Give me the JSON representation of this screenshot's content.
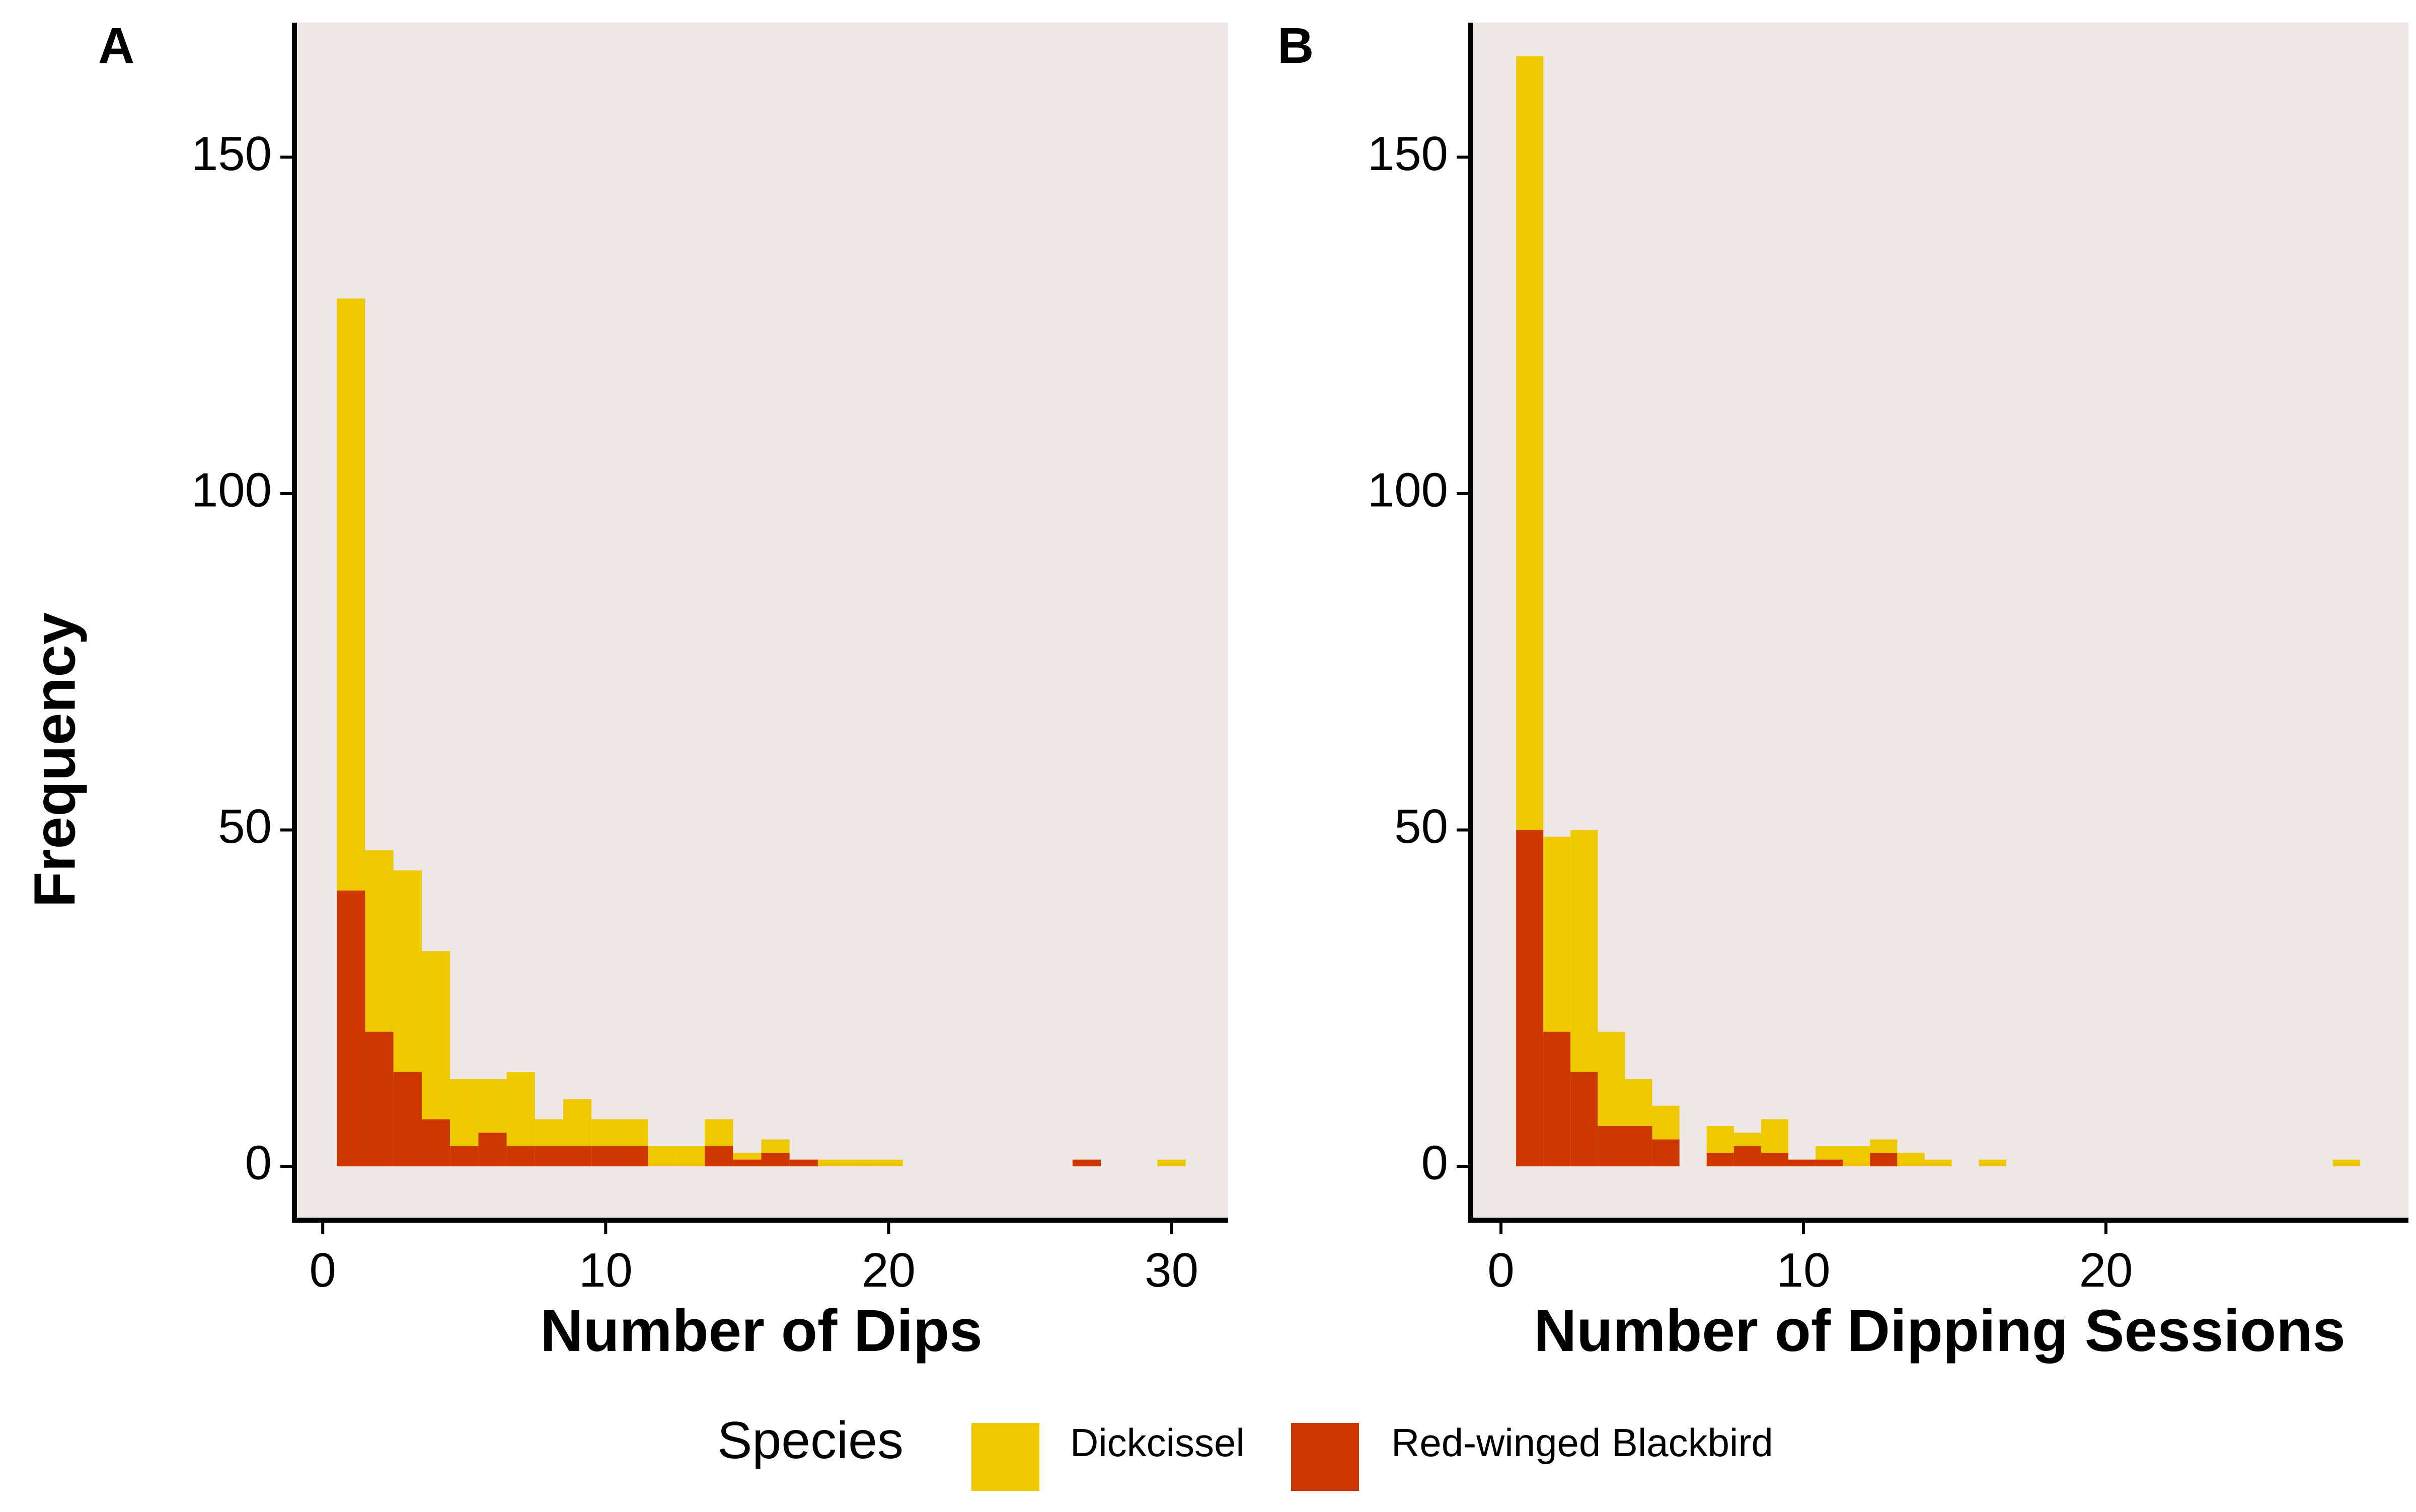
{
  "ylabel": "Frequency",
  "legend": {
    "title": "Species",
    "items": [
      {
        "name": "Dickcissel",
        "color": "#EEC900"
      },
      {
        "name": "Red-winged Blackbird",
        "color": "#CD3700"
      }
    ]
  },
  "colors": {
    "panel_bg": "#EDE8E7",
    "axis": "#000000"
  },
  "chart_data": [
    {
      "type": "bar",
      "stacked": true,
      "panel_label": "A",
      "xlabel": "Number of Dips",
      "ylabel": "Frequency",
      "xlim": [
        -1,
        32
      ],
      "ylim": [
        -8,
        170
      ],
      "xticks": [
        0,
        10,
        20,
        30
      ],
      "yticks": [
        0,
        50,
        100,
        150
      ],
      "bin_width": 1,
      "bins": [
        {
          "x": 1,
          "dickcissel": 88,
          "rwbb": 41
        },
        {
          "x": 2,
          "dickcissel": 27,
          "rwbb": 20
        },
        {
          "x": 3,
          "dickcissel": 30,
          "rwbb": 14
        },
        {
          "x": 4,
          "dickcissel": 25,
          "rwbb": 7
        },
        {
          "x": 5,
          "dickcissel": 10,
          "rwbb": 3
        },
        {
          "x": 6,
          "dickcissel": 8,
          "rwbb": 5
        },
        {
          "x": 7,
          "dickcissel": 11,
          "rwbb": 3
        },
        {
          "x": 8,
          "dickcissel": 4,
          "rwbb": 3
        },
        {
          "x": 9,
          "dickcissel": 7,
          "rwbb": 3
        },
        {
          "x": 10,
          "dickcissel": 4,
          "rwbb": 3
        },
        {
          "x": 11,
          "dickcissel": 4,
          "rwbb": 3
        },
        {
          "x": 12,
          "dickcissel": 3,
          "rwbb": 0
        },
        {
          "x": 13,
          "dickcissel": 3,
          "rwbb": 0
        },
        {
          "x": 14,
          "dickcissel": 4,
          "rwbb": 3
        },
        {
          "x": 15,
          "dickcissel": 1,
          "rwbb": 1
        },
        {
          "x": 16,
          "dickcissel": 2,
          "rwbb": 2
        },
        {
          "x": 17,
          "dickcissel": 0,
          "rwbb": 1
        },
        {
          "x": 18,
          "dickcissel": 1,
          "rwbb": 0
        },
        {
          "x": 19,
          "dickcissel": 1,
          "rwbb": 0
        },
        {
          "x": 20,
          "dickcissel": 1,
          "rwbb": 0
        },
        {
          "x": 27,
          "dickcissel": 0,
          "rwbb": 1
        },
        {
          "x": 30,
          "dickcissel": 1,
          "rwbb": 0
        }
      ]
    },
    {
      "type": "bar",
      "stacked": true,
      "panel_label": "B",
      "xlabel": "Number of Dipping Sessions",
      "ylabel": "",
      "xlim": [
        -1,
        30
      ],
      "ylim": [
        -8,
        170
      ],
      "xticks": [
        0,
        10,
        20
      ],
      "yticks": [
        0,
        50,
        100,
        150
      ],
      "bin_width": 0.9,
      "bins": [
        {
          "x": 0.95,
          "dickcissel": 115,
          "rwbb": 50
        },
        {
          "x": 1.85,
          "dickcissel": 29,
          "rwbb": 20
        },
        {
          "x": 2.75,
          "dickcissel": 36,
          "rwbb": 14
        },
        {
          "x": 3.65,
          "dickcissel": 14,
          "rwbb": 6
        },
        {
          "x": 4.55,
          "dickcissel": 7,
          "rwbb": 6
        },
        {
          "x": 5.45,
          "dickcissel": 5,
          "rwbb": 4
        },
        {
          "x": 7.25,
          "dickcissel": 4,
          "rwbb": 2
        },
        {
          "x": 8.15,
          "dickcissel": 2,
          "rwbb": 3
        },
        {
          "x": 9.05,
          "dickcissel": 5,
          "rwbb": 2
        },
        {
          "x": 9.95,
          "dickcissel": 0,
          "rwbb": 1
        },
        {
          "x": 10.85,
          "dickcissel": 2,
          "rwbb": 1
        },
        {
          "x": 11.75,
          "dickcissel": 3,
          "rwbb": 0
        },
        {
          "x": 12.65,
          "dickcissel": 2,
          "rwbb": 2
        },
        {
          "x": 13.55,
          "dickcissel": 2,
          "rwbb": 0
        },
        {
          "x": 14.45,
          "dickcissel": 1,
          "rwbb": 0
        },
        {
          "x": 16.25,
          "dickcissel": 1,
          "rwbb": 0
        },
        {
          "x": 27.95,
          "dickcissel": 1,
          "rwbb": 0
        }
      ]
    }
  ]
}
